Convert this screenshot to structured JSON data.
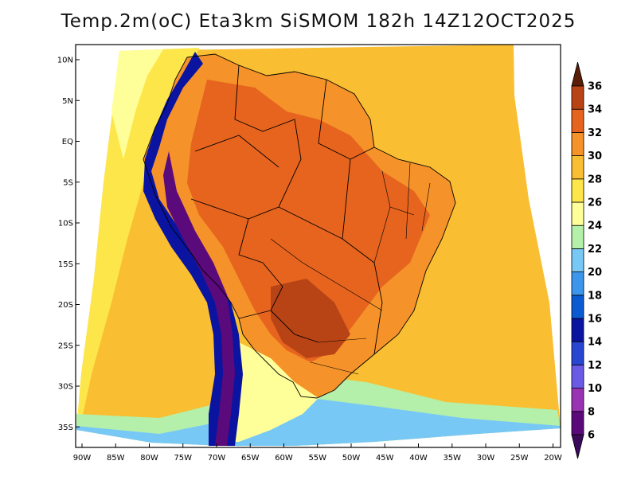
{
  "title": "Temp.2m(oC) Eta3km SiSMOM 182h 14Z12OCT2025",
  "lat_ticks": [
    {
      "label": "10N",
      "lat": 10
    },
    {
      "label": "5N",
      "lat": 5
    },
    {
      "label": "EQ",
      "lat": 0
    },
    {
      "label": "5S",
      "lat": -5
    },
    {
      "label": "10S",
      "lat": -10
    },
    {
      "label": "15S",
      "lat": -15
    },
    {
      "label": "20S",
      "lat": -20
    },
    {
      "label": "25S",
      "lat": -25
    },
    {
      "label": "30S",
      "lat": -30
    },
    {
      "label": "35S",
      "lat": -35
    }
  ],
  "lon_ticks": [
    {
      "label": "90W",
      "lon": -90
    },
    {
      "label": "85W",
      "lon": -85
    },
    {
      "label": "80W",
      "lon": -80
    },
    {
      "label": "75W",
      "lon": -75
    },
    {
      "label": "70W",
      "lon": -70
    },
    {
      "label": "65W",
      "lon": -65
    },
    {
      "label": "60W",
      "lon": -60
    },
    {
      "label": "55W",
      "lon": -55
    },
    {
      "label": "50W",
      "lon": -50
    },
    {
      "label": "45W",
      "lon": -45
    },
    {
      "label": "40W",
      "lon": -40
    },
    {
      "label": "35W",
      "lon": -35
    },
    {
      "label": "30W",
      "lon": -30
    },
    {
      "label": "25W",
      "lon": -25
    },
    {
      "label": "20W",
      "lon": -20
    }
  ],
  "colorbar": {
    "levels": [
      "6",
      "8",
      "10",
      "12",
      "14",
      "16",
      "18",
      "20",
      "22",
      "24",
      "26",
      "28",
      "30",
      "32",
      "34",
      "36"
    ],
    "colors": [
      "#5a0a7a",
      "#9a32b4",
      "#6a5ae6",
      "#2846d2",
      "#0a14a0",
      "#0a5ad2",
      "#3c96ec",
      "#78c8f5",
      "#b4f0aa",
      "#ffff9a",
      "#fde64a",
      "#f9be32",
      "#f5922a",
      "#e6641e",
      "#b84416",
      "#7a280c"
    ],
    "low_color": "#3c0a5a",
    "high_color": "#5a1e08"
  },
  "map_colors": {
    "ocean_warm": "#f9be32",
    "ocean_mid": "#fde64a",
    "ocean_cool": "#ffff9a",
    "ocean_cold": "#b4f0aa",
    "ocean_south": "#78c8f5",
    "land_hot": "#f5922a",
    "land_hotter": "#e6641e",
    "land_hottest": "#b84416",
    "andes_cold": "#0a14a0",
    "andes_colder": "#5a0a7a",
    "border": "#000000"
  }
}
